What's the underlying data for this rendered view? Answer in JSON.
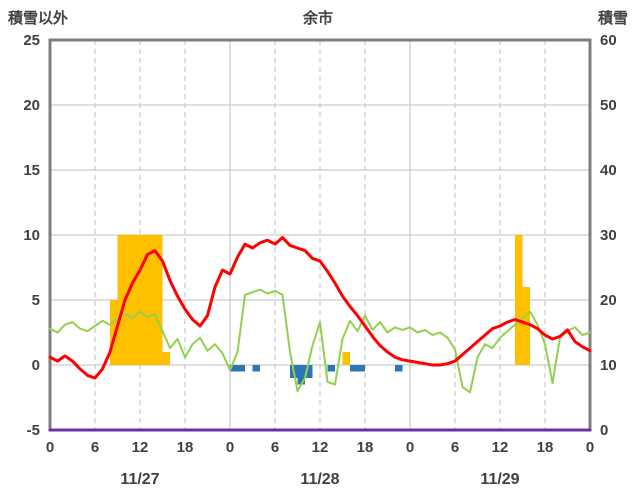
{
  "header": {
    "left_axis_title": "積雪以外",
    "chart_title": "余市",
    "right_axis_title": "積雪"
  },
  "chart_data": {
    "type": "line",
    "title": "余市",
    "x_unit": "hour",
    "x_range": [
      0,
      72
    ],
    "x_tick_hours": [
      0,
      6,
      12,
      18,
      24,
      30,
      36,
      42,
      48,
      54,
      60,
      66,
      72
    ],
    "x_tick_labels": [
      "0",
      "6",
      "12",
      "18",
      "0",
      "6",
      "12",
      "18",
      "0",
      "6",
      "12",
      "18",
      "0"
    ],
    "date_labels": [
      {
        "label": "11/27",
        "hour": 12
      },
      {
        "label": "11/28",
        "hour": 36
      },
      {
        "label": "11/29",
        "hour": 60
      }
    ],
    "left_axis": {
      "title": "積雪以外",
      "min": -5,
      "max": 25,
      "ticks": [
        25,
        20,
        15,
        10,
        5,
        0,
        -5
      ]
    },
    "right_axis": {
      "title": "積雪",
      "min": 0,
      "max": 60,
      "ticks": [
        60,
        50,
        40,
        30,
        20,
        10,
        0
      ]
    },
    "grid": {
      "horizontal_step": 5,
      "vertical_dashed_every_hours": 6,
      "vertical_solid_at_day_boundaries": true
    },
    "series": [
      {
        "name": "orange-bars",
        "type": "bar",
        "axis": "left",
        "color": "#FFC000",
        "values_by_hour": {
          "8": 5,
          "9": 10,
          "10": 10,
          "11": 10,
          "12": 10,
          "13": 10,
          "14": 10,
          "15": 1,
          "39": 1,
          "62": 10,
          "63": 6
        }
      },
      {
        "name": "blue-bars",
        "type": "bar",
        "axis": "left",
        "color": "#2E75B6",
        "values_by_hour": {
          "24": -0.5,
          "25": -0.5,
          "27": -0.5,
          "32": -1.0,
          "33": -1.5,
          "34": -1.0,
          "37": -0.5,
          "40": -0.5,
          "41": -0.5,
          "46": -0.5
        }
      },
      {
        "name": "purple-line",
        "type": "line",
        "axis": "right",
        "color": "#7030A0",
        "width": 3,
        "constant_value": 0
      },
      {
        "name": "green-line",
        "type": "line",
        "axis": "left",
        "color": "#92D050",
        "width": 2,
        "values": [
          2.8,
          2.5,
          3.1,
          3.3,
          2.8,
          2.6,
          3.0,
          3.4,
          3.1,
          3.6,
          3.9,
          3.6,
          4.1,
          3.7,
          3.9,
          2.6,
          1.3,
          2.0,
          0.6,
          1.6,
          2.1,
          1.1,
          1.6,
          0.9,
          -0.4,
          1.0,
          5.4,
          5.6,
          5.8,
          5.5,
          5.7,
          5.4,
          1.0,
          -2.0,
          -1.0,
          1.5,
          3.3,
          -1.3,
          -1.5,
          2.0,
          3.4,
          2.6,
          3.8,
          2.7,
          3.3,
          2.5,
          2.9,
          2.7,
          2.9,
          2.5,
          2.7,
          2.3,
          2.5,
          2.1,
          1.2,
          -1.7,
          -2.1,
          0.6,
          1.6,
          1.3,
          2.1,
          2.6,
          3.1,
          3.6,
          4.1,
          3.1,
          1.6,
          -1.4,
          2.1,
          2.6,
          2.9,
          2.3,
          2.5
        ]
      },
      {
        "name": "red-line",
        "type": "line",
        "axis": "left",
        "color": "#FF0000",
        "width": 3,
        "values": [
          0.6,
          0.3,
          0.7,
          0.3,
          -0.3,
          -0.8,
          -1.0,
          -0.3,
          1.0,
          3.0,
          5.0,
          6.3,
          7.3,
          8.5,
          8.8,
          8.0,
          6.5,
          5.3,
          4.3,
          3.5,
          3.0,
          3.8,
          6.0,
          7.3,
          7.0,
          8.3,
          9.3,
          9.0,
          9.4,
          9.6,
          9.3,
          9.8,
          9.2,
          9.0,
          8.8,
          8.2,
          8.0,
          7.2,
          6.3,
          5.3,
          4.5,
          3.8,
          3.0,
          2.2,
          1.5,
          1.0,
          0.6,
          0.4,
          0.3,
          0.2,
          0.1,
          0.0,
          0.0,
          0.1,
          0.3,
          0.8,
          1.3,
          1.8,
          2.3,
          2.8,
          3.0,
          3.3,
          3.5,
          3.3,
          3.1,
          2.8,
          2.3,
          2.0,
          2.2,
          2.7,
          1.8,
          1.4,
          1.1
        ]
      }
    ],
    "style": {
      "frame_color": "#7F7F7F",
      "frame_width": 3,
      "grid_color": "#BFBFBF",
      "text_color": "#404040",
      "axis_font_size": 15,
      "date_font_size": 16
    }
  }
}
